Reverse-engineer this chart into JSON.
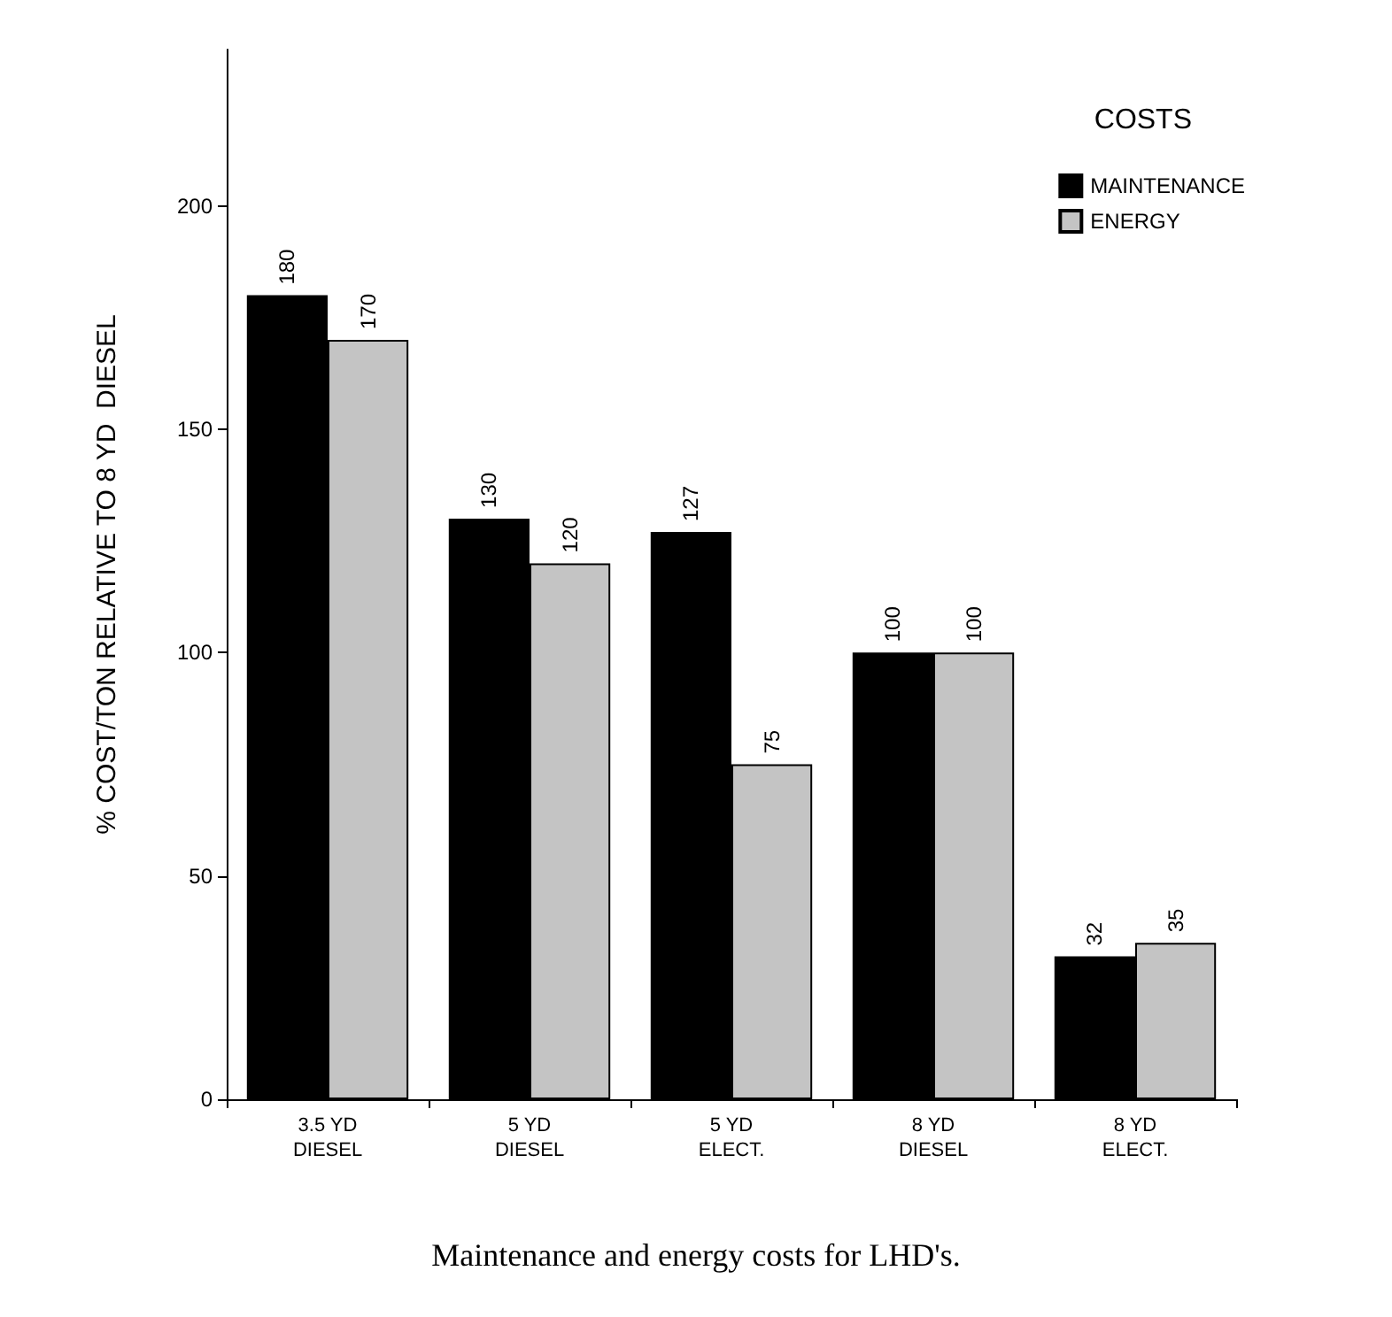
{
  "chart_data": {
    "type": "bar",
    "ylabel": "% COST/TON RELATIVE TO 8 YD  DIESEL",
    "legend_title": "COSTS",
    "annotations": [
      "Maintenance and energy costs for LHD's."
    ],
    "categories": [
      "3.5 YD\nDIESEL",
      "5 YD\nDIESEL",
      "5 YD\nELECT.",
      "8 YD\nDIESEL",
      "8 YD\nELECT."
    ],
    "series": [
      {
        "name": "MAINTENANCE",
        "color": "#000000",
        "values": [
          180,
          130,
          127,
          100,
          32
        ]
      },
      {
        "name": "ENERGY",
        "color": "#c4c4c4",
        "values": [
          170,
          120,
          75,
          100,
          35
        ]
      }
    ],
    "ylim": [
      0,
      235
    ],
    "yticks": [
      0,
      50,
      100,
      150,
      200
    ],
    "data_labels": true,
    "grid": false,
    "legend": "top right"
  }
}
